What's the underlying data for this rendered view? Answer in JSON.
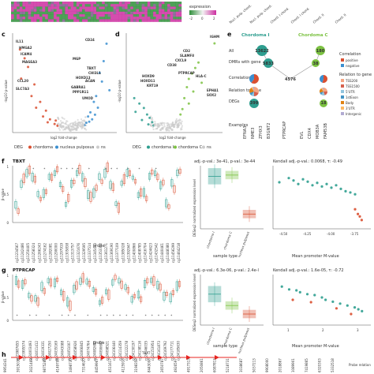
{
  "panel_labels": [
    "c",
    "d",
    "e",
    "f",
    "g",
    "h"
  ],
  "colors": {
    "chordoma": "#d94f30",
    "nucleus_pulposus": "#3b8fd0",
    "ns": "#cccccc",
    "chordoma_I": "#2e9e8f",
    "chordoma_C": "#7cc242",
    "positive": "#d94f30",
    "negative": "#3b8fd0",
    "heatmap_green": "#2f8f3a",
    "heatmap_magenta": "#cc2ea0",
    "tbxt_red": "#e8231f"
  },
  "heatmap_strip": {
    "expression_label": "expression",
    "scale_ticks": [
      "-2",
      "0",
      "2"
    ],
    "column_labels": [
      "Nucl. pulp. chord.",
      "Nucl. pulp. chord.",
      "Chord. I chord.",
      "Chord. I chord.",
      "Chord. II",
      "Chord. II"
    ]
  },
  "panel_c": {
    "xlabel": "log2 fold-change",
    "ylabel": "-log10 p-value",
    "gene_labels": [
      {
        "name": "CD24",
        "side": "blue"
      },
      {
        "name": "IL11",
        "side": "red"
      },
      {
        "name": "HMGA2",
        "side": "red"
      },
      {
        "name": "ICAM4",
        "side": "red"
      },
      {
        "name": "MAGEA3",
        "side": "red"
      },
      {
        "name": "MGP",
        "side": "blue"
      },
      {
        "name": "TBXT",
        "side": "blue"
      },
      {
        "name": "CHI3L1",
        "side": "blue"
      },
      {
        "name": "HOXD13",
        "side": "blue"
      },
      {
        "name": "GABRA1",
        "side": "blue"
      },
      {
        "name": "PPP1R11",
        "side": "blue"
      },
      {
        "name": "CCL20",
        "side": "red"
      },
      {
        "name": "SLC7A3",
        "side": "red"
      },
      {
        "name": "ACAN",
        "side": "blue"
      },
      {
        "name": "UMOD",
        "side": "blue"
      }
    ],
    "legend_title": "DEG",
    "legend": [
      "chordoma",
      "nucleus pulposus",
      "ns"
    ]
  },
  "panel_d": {
    "xlabel": "log2 fold-change",
    "ylabel": "-log10 p-value",
    "gene_labels": [
      "IGHM",
      "CD2",
      "SLAMF8",
      "CXCL9",
      "CD38",
      "PTPRCAP",
      "HOXD9",
      "HLA-C",
      "HOXD11",
      "KRT19",
      "EPHA1",
      "SOX2"
    ],
    "legend_title": "DEG",
    "legend": [
      "chordoma I",
      "chordoma C",
      "ns"
    ]
  },
  "panel_e": {
    "col1": "Chordoma I",
    "col2": "Chordoma C",
    "row_labels": [
      "All",
      "DMRs with gene",
      "Correlation",
      "Relation to gene",
      "DEGs",
      "Examples"
    ],
    "col1_counts": [
      "13622",
      "5833",
      "",
      "",
      "399"
    ],
    "shared": "4576",
    "col2_counts": [
      "180",
      "38",
      "",
      "",
      "18"
    ],
    "col1_examples": [
      "EFNA3",
      "NME3",
      "ZFHX3",
      "B3GNT2",
      "PTPRCAP"
    ],
    "col2_examples": [
      "EVL",
      "CDX4",
      "MOB3A",
      "FAM53B"
    ],
    "correlation_legend_title": "Correlation",
    "correlation_legend": [
      "positive",
      "negative"
    ],
    "relation_legend_title": "Relation to gene",
    "relation_legend": [
      "TSS200",
      "TSS1500",
      "5'UTR",
      "1stExon",
      "Body",
      "3'UTR",
      "Intergenic"
    ]
  },
  "panel_f": {
    "gene": "TBXT",
    "xlabel": "probe",
    "ylabel": "β-value",
    "yticks": [
      "0",
      "0.5",
      "1"
    ],
    "box_title": "adj.-p-val.: 3e-41, p-val.: 3e-44",
    "box_ylabel": "DESeq2 normalized expression level",
    "box_xlabel": "sample type",
    "box_categories": [
      "chordoma I",
      "chordoma C",
      "nucleus pulposus"
    ],
    "scatter_title": "Kendall adj.-p-val.: 0.0068, τ: -0.49",
    "scatter_xlabel": "Mean promoter M-value",
    "scatter_xticks": [
      "-4.50",
      "-4.25",
      "-4.00",
      "-3.75"
    ]
  },
  "panel_g": {
    "gene": "PTPRCAP",
    "xlabel": "probe",
    "ylabel": "β-value",
    "yticks": [
      "0",
      "0.5",
      "1"
    ],
    "box_title": "adj.-p-val.: 6.3e-06, p-val.: 2.4e-l",
    "box_ylabel": "DESeq2 normalized expression level",
    "box_xlabel": "sample type",
    "box_categories": [
      "chordoma I",
      "chordoma C",
      "nucleus pulposus"
    ],
    "scatter_title": "Kendall adj.-p-val.: 1.6e-05, τ: -0.72",
    "scatter_xlabel": "Mean promoter M-value",
    "scatter_xticks": [
      "1",
      "2",
      "3"
    ]
  },
  "panel_h": {
    "gene": "TBXT",
    "probes_label": "Probe relation",
    "probe_ids": [
      "9954341",
      "3915018",
      "3021463",
      "9875288",
      "4149708",
      "3498730",
      "7314620",
      "8459967",
      "4511617",
      "4125918",
      "3198358",
      "8443008",
      "2650787",
      "4926597",
      "4917313",
      "2050861",
      "6087813",
      "5218731",
      "1038687",
      "5037213",
      "9908000",
      "2018867",
      "1089901",
      "7419865",
      "6320303",
      "5332518"
    ]
  },
  "chart_data": [
    {
      "type": "heatmap",
      "title": "",
      "colorbar_label": "expression",
      "colorbar_ticks": [
        -2,
        0,
        2
      ],
      "columns": [
        "Nucl. pulp. chord.",
        "Nucl. pulp. chord.",
        "Chord. I chord.",
        "Chord. I chord.",
        "Chord. II",
        "Chord. II"
      ]
    },
    {
      "type": "scatter",
      "panel": "c",
      "xlabel": "log2 fold-change",
      "ylabel": "-log10 p-value",
      "series": [
        {
          "name": "chordoma",
          "values": [
            [
              -9,
              14
            ],
            [
              -8.2,
              12.5
            ],
            [
              -7.6,
              11
            ],
            [
              -8.8,
              9
            ],
            [
              -6.5,
              8
            ],
            [
              -7,
              6
            ],
            [
              -5.5,
              5
            ],
            [
              -6.2,
              4
            ],
            [
              -4.5,
              3.5
            ],
            [
              -5,
              2.5
            ],
            [
              -3.8,
              2
            ],
            [
              -4.2,
              1.5
            ],
            [
              -3,
              1.2
            ],
            [
              -2.5,
              0.9
            ],
            [
              -2.8,
              1.8
            ]
          ]
        },
        {
          "name": "nucleus pulposus",
          "values": [
            [
              6,
              15
            ],
            [
              5.5,
              12
            ],
            [
              4.8,
              10
            ],
            [
              5.2,
              8.5
            ],
            [
              6.5,
              7
            ],
            [
              4.2,
              6
            ],
            [
              3.8,
              5
            ],
            [
              4.5,
              4
            ],
            [
              3.2,
              3.2
            ],
            [
              2.8,
              2.5
            ],
            [
              3.5,
              2
            ],
            [
              2.5,
              1.4
            ],
            [
              2.2,
              1
            ],
            [
              3,
              1.6
            ],
            [
              4,
              2.8
            ]
          ]
        },
        {
          "name": "ns",
          "values": [
            [
              -2,
              1
            ],
            [
              -1.5,
              0.8
            ],
            [
              -1,
              0.6
            ],
            [
              -0.5,
              0.4
            ],
            [
              0,
              0.3
            ],
            [
              0.5,
              0.4
            ],
            [
              1,
              0.6
            ],
            [
              1.5,
              0.8
            ],
            [
              2,
              1
            ],
            [
              -1.2,
              0.3
            ],
            [
              0.8,
              0.2
            ],
            [
              -0.3,
              0.1
            ]
          ]
        }
      ]
    },
    {
      "type": "scatter",
      "panel": "d",
      "xlabel": "log2 fold-change",
      "ylabel": "-log10 p-value",
      "series": [
        {
          "name": "chordoma I",
          "values": [
            [
              -5,
              6
            ],
            [
              -4.2,
              5
            ],
            [
              -3.5,
              4.2
            ],
            [
              -4.8,
              3.5
            ],
            [
              -3,
              3
            ],
            [
              -2.6,
              2.4
            ],
            [
              -3.8,
              2
            ],
            [
              -2.2,
              1.6
            ],
            [
              -2.8,
              1.2
            ],
            [
              -2,
              1
            ]
          ]
        },
        {
          "name": "chordoma C",
          "values": [
            [
              7.5,
              16
            ],
            [
              5,
              12.5
            ],
            [
              4.5,
              11.5
            ],
            [
              4,
              10.5
            ],
            [
              3.5,
              9.5
            ],
            [
              5.5,
              8.8
            ],
            [
              3.2,
              8
            ],
            [
              4.2,
              7.2
            ],
            [
              2.8,
              6
            ],
            [
              3.5,
              5
            ],
            [
              2.5,
              4
            ],
            [
              2.2,
              3
            ]
          ]
        },
        {
          "name": "ns",
          "values": [
            [
              -1.8,
              1
            ],
            [
              -1.2,
              0.8
            ],
            [
              -0.6,
              0.5
            ],
            [
              0,
              0.3
            ],
            [
              0.6,
              0.5
            ],
            [
              1.2,
              0.8
            ],
            [
              1.8,
              1
            ],
            [
              -0.9,
              0.2
            ],
            [
              0.9,
              0.2
            ]
          ]
        }
      ]
    },
    {
      "type": "bar",
      "panel": "f-box",
      "title": "adj.-p-val.: 3e-41, p-val.: 3e-44",
      "ylabel": "DESeq2 normalized expression level",
      "categories": [
        "chordoma I",
        "chordoma C",
        "nucleus pulposus"
      ],
      "values": [
        0.85,
        0.87,
        0.22
      ],
      "ylim": [
        0,
        1
      ]
    },
    {
      "type": "scatter",
      "panel": "f-scatter",
      "title": "Kendall adj.-p-val.: 0.0068, τ: -0.49",
      "xlabel": "Mean promoter M-value",
      "xlim": [
        -4.6,
        -3.6
      ],
      "series": [
        {
          "name": "",
          "values": [
            [
              -4.55,
              0.75
            ],
            [
              -4.45,
              0.82
            ],
            [
              -4.4,
              0.78
            ],
            [
              -4.35,
              0.72
            ],
            [
              -4.3,
              0.8
            ],
            [
              -4.25,
              0.76
            ],
            [
              -4.2,
              0.7
            ],
            [
              -4.15,
              0.74
            ],
            [
              -4.1,
              0.68
            ],
            [
              -4.05,
              0.72
            ],
            [
              -4.0,
              0.66
            ],
            [
              -3.95,
              0.7
            ],
            [
              -3.9,
              0.64
            ],
            [
              -3.85,
              0.6
            ],
            [
              -3.8,
              0.58
            ],
            [
              -3.75,
              0.55
            ]
          ]
        },
        {
          "name": "",
          "values": [
            [
              -3.75,
              0.3
            ],
            [
              -3.72,
              0.22
            ],
            [
              -3.7,
              0.18
            ],
            [
              -3.68,
              0.12
            ]
          ]
        }
      ]
    },
    {
      "type": "bar",
      "panel": "g-box",
      "title": "adj.-p-val.: 6.3e-06, p-val.: 2.4e-l",
      "ylabel": "DESeq2 normalized expression level",
      "categories": [
        "chordoma I",
        "chordoma C",
        "nucleus pulposus"
      ],
      "values": [
        0.62,
        0.38,
        0.2
      ],
      "ylim": [
        0,
        1
      ]
    },
    {
      "type": "scatter",
      "panel": "g-scatter",
      "title": "Kendall adj.-p-val.: 1.6e-05, τ: -0.72",
      "xlabel": "Mean promoter M-value",
      "xlim": [
        0.6,
        3.2
      ],
      "series": [
        {
          "name": "",
          "values": [
            [
              0.8,
              0.78
            ],
            [
              1.0,
              0.72
            ],
            [
              1.2,
              0.7
            ],
            [
              1.3,
              0.66
            ],
            [
              1.5,
              0.62
            ],
            [
              1.7,
              0.6
            ],
            [
              1.9,
              0.55
            ],
            [
              2.0,
              0.5
            ],
            [
              2.2,
              0.46
            ],
            [
              2.4,
              0.42
            ],
            [
              2.6,
              0.38
            ],
            [
              2.8,
              0.34
            ],
            [
              2.9,
              0.3
            ],
            [
              3.0,
              0.26
            ]
          ]
        },
        {
          "name": "",
          "values": [
            [
              1.1,
              0.5
            ],
            [
              1.6,
              0.45
            ],
            [
              2.3,
              0.32
            ],
            [
              2.7,
              0.2
            ]
          ]
        }
      ]
    }
  ]
}
